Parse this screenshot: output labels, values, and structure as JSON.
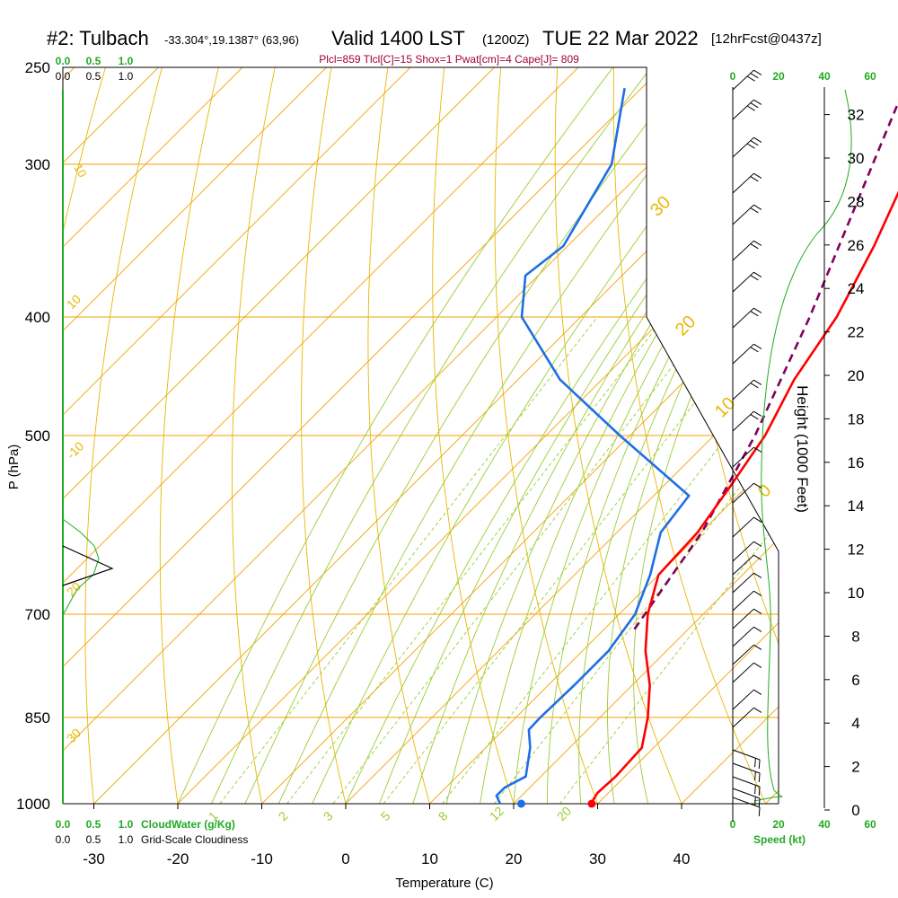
{
  "title": {
    "station": "#2: Tulbach",
    "coords": "-33.304°,19.1387° (63,96)",
    "valid": "Valid 1400 LST",
    "utc": "(1200Z)",
    "date": "TUE 22 Mar 2022",
    "forecast": "[12hrFcst@0437z]"
  },
  "stats_line": "Plcl=859 Tlcl[C]=15 Shox=1 Pwat[cm]=4 Cape[J]= 809",
  "colors": {
    "isobar": "#f5a000",
    "adiabat": "#e8b800",
    "moist": "#9acd32",
    "temp": "#ff0000",
    "dew": "#1e6fe6",
    "parcel": "#800060",
    "cloud": "#22aa22",
    "stats": "#a0003c"
  },
  "chart_data": {
    "type": "line",
    "subtype": "skew-T log-P sounding",
    "xlabel": "Temperature (C)",
    "ylabel": "P (hPa)",
    "right_axis_label": "Height (1000 Feet)",
    "x_ticks": [
      "-30",
      "-20",
      "-10",
      "0",
      "10",
      "20",
      "30",
      "40"
    ],
    "y_ticks": [
      "250",
      "300",
      "400",
      "500",
      "700",
      "850",
      "1000"
    ],
    "height_ticks": [
      "0",
      "2",
      "4",
      "6",
      "8",
      "10",
      "12",
      "14",
      "16",
      "18",
      "20",
      "22",
      "24",
      "26",
      "28",
      "30",
      "32"
    ],
    "pressure_levels": [
      1000,
      850,
      700,
      500,
      400,
      300,
      250
    ],
    "dry_adiabat_labels": [
      "30",
      "20",
      "10",
      "0",
      "10",
      "-10",
      "20",
      "30"
    ],
    "mixing_ratio_labels": [
      "1",
      "2",
      "3",
      "5",
      "8",
      "12",
      "20"
    ],
    "temperature": {
      "name": "Temperature",
      "p": [
        1000,
        980,
        950,
        900,
        850,
        800,
        750,
        700,
        650,
        600,
        550,
        500,
        450,
        400,
        350,
        300,
        280,
        260
      ],
      "t": [
        29.2,
        28.7,
        28.9,
        28.6,
        25.7,
        22.1,
        17.5,
        13.4,
        10.0,
        9.6,
        8.0,
        6.1,
        2.9,
        0.5,
        -3.5,
        -8.8,
        -11.5,
        -14.5
      ]
    },
    "dewpoint": {
      "name": "Dewpoint",
      "p": [
        1000,
        985,
        970,
        950,
        900,
        870,
        850,
        800,
        750,
        700,
        650,
        600,
        560,
        500,
        450,
        400,
        370,
        350,
        300,
        260
      ],
      "td": [
        18.4,
        17.0,
        17.0,
        18.2,
        15.3,
        13.0,
        12.9,
        13.1,
        13.1,
        11.9,
        9.0,
        5.2,
        4.2,
        -11.2,
        -25.0,
        -37.0,
        -41.5,
        -40.5,
        -44.5,
        -52.0
      ]
    },
    "parcel": {
      "name": "Parcel",
      "p": [
        720,
        600,
        500,
        400,
        300,
        260
      ],
      "t": [
        13.6,
        10.1,
        4.9,
        -2.7,
        -13.4,
        -18.7
      ]
    },
    "surface_marks": {
      "temperature": 29.3,
      "dewpoint": 20.9
    },
    "cloud_axis": {
      "top_green": [
        "0.0",
        "0.5",
        "1.0"
      ],
      "top_black": [
        "0.0",
        "0.5",
        "1.0"
      ],
      "bottom_green": [
        "0.0",
        "0.5",
        "1.0"
      ],
      "bottom_black": [
        "0.0",
        "0.5",
        "1.0"
      ],
      "cloudwater_label": "CloudWater (g/Kg)",
      "cloudiness_label": "Grid-Scale Cloudiness"
    },
    "wind_speed_axis": {
      "ticks": [
        "0",
        "20",
        "40",
        "60"
      ],
      "label": "Speed (kt)"
    }
  }
}
